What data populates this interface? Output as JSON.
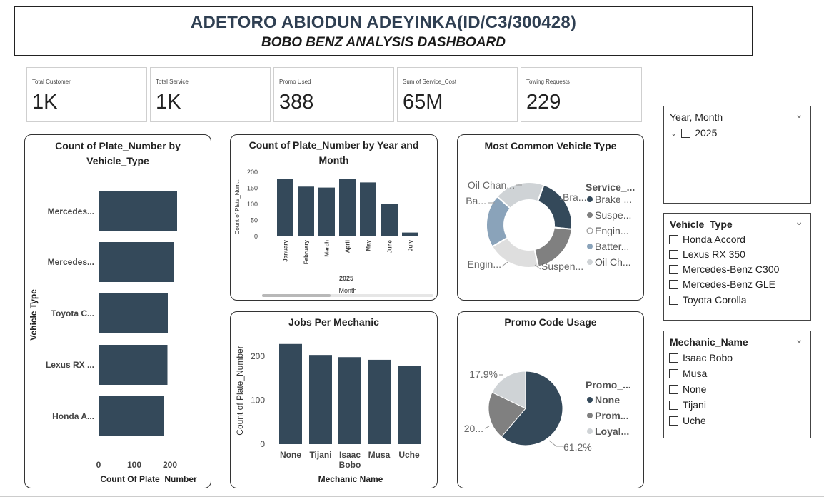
{
  "header": {
    "title": "ADETORO ABIODUN ADEYINKA(ID/C3/300428)",
    "subtitle": "BOBO BENZ ANALYSIS DASHBOARD"
  },
  "kpis": [
    {
      "label": "Total Customer",
      "value": "1K"
    },
    {
      "label": "Total Service",
      "value": "1K"
    },
    {
      "label": "Promo Used",
      "value": "388"
    },
    {
      "label": "Sum of Service_Cost",
      "value": "65M"
    },
    {
      "label": "Towing Requests",
      "value": "229"
    }
  ],
  "colors": {
    "dark": "#34495a",
    "mid": "#808080",
    "light": "#cfd3d6",
    "blue": "#8aa3ba"
  },
  "chart_data": [
    {
      "type": "bar",
      "orientation": "horizontal",
      "title": "Count of Plate_Number by Vehicle_Type",
      "xlabel": "Count Of Plate_Number",
      "ylabel": "Vehicle Type",
      "categories": [
        "Mercedes...",
        "Mercedes...",
        "Toyota C...",
        "Lexus RX ...",
        "Honda A..."
      ],
      "values": [
        220,
        212,
        194,
        193,
        184
      ],
      "xticks": [
        "0",
        "100",
        "200"
      ],
      "xlim": [
        0,
        250
      ]
    },
    {
      "type": "bar",
      "title": "Count of Plate_Number by Year and Month",
      "xlabel": "Month",
      "ylabel": "Count of Plate_Num...",
      "group_label": "2025",
      "categories": [
        "January",
        "February",
        "March",
        "April",
        "May",
        "June",
        "July"
      ],
      "values": [
        180,
        155,
        152,
        180,
        168,
        100,
        12
      ],
      "yticks": [
        "0",
        "50",
        "100",
        "150",
        "200"
      ],
      "ylim": [
        0,
        200
      ]
    },
    {
      "type": "pie",
      "donut": true,
      "title": "Most Common Vehicle Type",
      "legend_title": "Service_...",
      "legend_position": "right",
      "legend": [
        "Brake ...",
        "Suspe...",
        "Engin...",
        "Batter...",
        "Oil Ch..."
      ],
      "labels": [
        "Bra...",
        "Suspen...",
        "Engin...",
        "Ba...",
        "Oil Chan..."
      ],
      "values": [
        21,
        20,
        20,
        20,
        19
      ]
    },
    {
      "type": "bar",
      "title": "Jobs Per Mechanic",
      "xlabel": "Mechanic Name",
      "ylabel": "Count of Plate_Number",
      "categories": [
        "None",
        "Tijani",
        "Isaac Bobo",
        "Musa",
        "Uche"
      ],
      "values": [
        228,
        203,
        198,
        192,
        178
      ],
      "yticks": [
        "0",
        "100",
        "200"
      ],
      "ylim": [
        0,
        250
      ]
    },
    {
      "type": "pie",
      "title": "Promo Code Usage",
      "legend_title": "Promo_...",
      "legend_position": "right",
      "legend": [
        "None",
        "Prom...",
        "Loyal..."
      ],
      "labels": [
        "61.2%",
        "20...",
        "17.9%"
      ],
      "values": [
        61.2,
        20.9,
        17.9
      ]
    }
  ],
  "slicers": {
    "year_month": {
      "title": "Year, Month",
      "items": [
        "2025"
      ]
    },
    "vehicle_type": {
      "title": "Vehicle_Type",
      "items": [
        "Honda Accord",
        "Lexus RX 350",
        "Mercedes-Benz C300",
        "Mercedes-Benz GLE",
        "Toyota Corolla"
      ]
    },
    "mechanic_name": {
      "title": "Mechanic_Name",
      "items": [
        "Isaac Bobo",
        "Musa",
        "None",
        "Tijani",
        "Uche"
      ]
    }
  }
}
